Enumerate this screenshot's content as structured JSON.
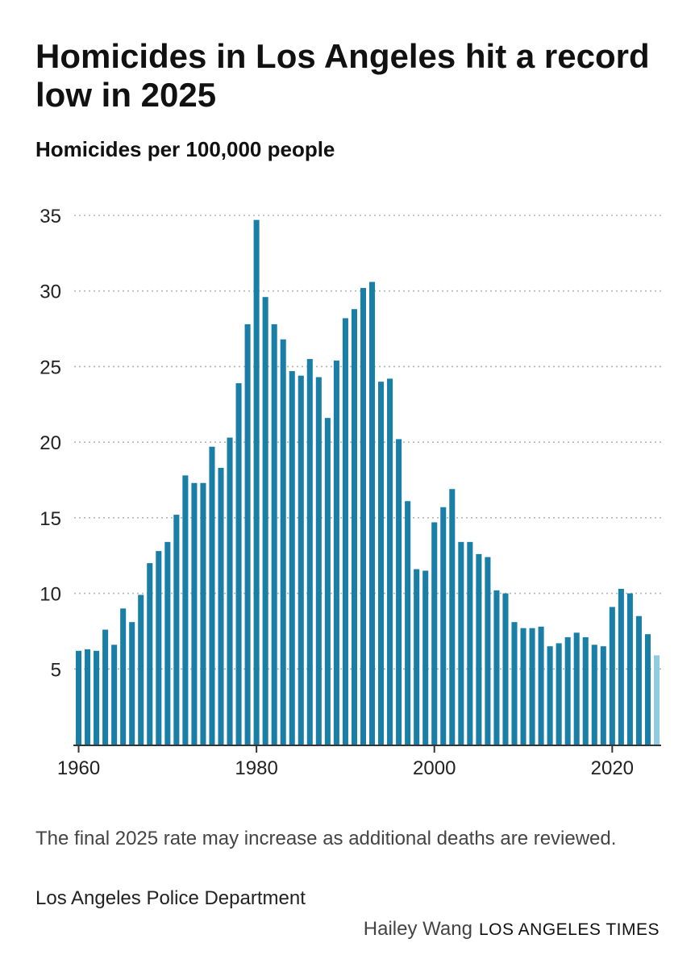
{
  "header": {
    "title": "Homicides in Los Angeles hit a record low in 2025",
    "subtitle": "Homicides per 100,000 people"
  },
  "chart_data": {
    "type": "bar",
    "title": "Homicides in Los Angeles hit a record low in 2025",
    "subtitle": "Homicides per 100,000 people",
    "xlabel": "",
    "ylabel": "",
    "ylim": [
      0,
      35
    ],
    "yticks": [
      5,
      10,
      15,
      20,
      25,
      30,
      35
    ],
    "xticks": [
      1960,
      1980,
      2000,
      2020
    ],
    "grid": true,
    "colors": {
      "bar": "#1a7fa6",
      "highlight": "#8fcbe2",
      "grid": "#b5b5b5",
      "axis": "#333333"
    },
    "highlight_year": 2025,
    "x": [
      1960,
      1961,
      1962,
      1963,
      1964,
      1965,
      1966,
      1967,
      1968,
      1969,
      1970,
      1971,
      1972,
      1973,
      1974,
      1975,
      1976,
      1977,
      1978,
      1979,
      1980,
      1981,
      1982,
      1983,
      1984,
      1985,
      1986,
      1987,
      1988,
      1989,
      1990,
      1991,
      1992,
      1993,
      1994,
      1995,
      1996,
      1997,
      1998,
      1999,
      2000,
      2001,
      2002,
      2003,
      2004,
      2005,
      2006,
      2007,
      2008,
      2009,
      2010,
      2011,
      2012,
      2013,
      2014,
      2015,
      2016,
      2017,
      2018,
      2019,
      2020,
      2021,
      2022,
      2023,
      2024,
      2025
    ],
    "values": [
      6.2,
      6.3,
      6.2,
      7.6,
      6.6,
      9.0,
      8.1,
      9.9,
      12.0,
      12.8,
      13.4,
      15.2,
      17.8,
      17.3,
      17.3,
      19.7,
      18.3,
      20.3,
      23.9,
      27.8,
      34.7,
      29.6,
      27.8,
      26.8,
      24.7,
      24.4,
      25.5,
      24.3,
      21.6,
      25.4,
      28.2,
      28.8,
      30.2,
      30.6,
      24.0,
      24.2,
      20.2,
      16.1,
      11.6,
      11.5,
      14.7,
      15.7,
      16.9,
      13.4,
      13.4,
      12.6,
      12.4,
      10.2,
      10.0,
      8.1,
      7.7,
      7.7,
      7.8,
      6.5,
      6.7,
      7.1,
      7.4,
      7.1,
      6.6,
      6.5,
      9.1,
      10.3,
      10.0,
      8.5,
      7.3,
      5.9
    ]
  },
  "footer": {
    "note": "The final 2025 rate may increase as additional deaths are reviewed.",
    "source": "Los Angeles Police Department",
    "author": "Hailey Wang",
    "publication": "LOS ANGELES TIMES"
  }
}
